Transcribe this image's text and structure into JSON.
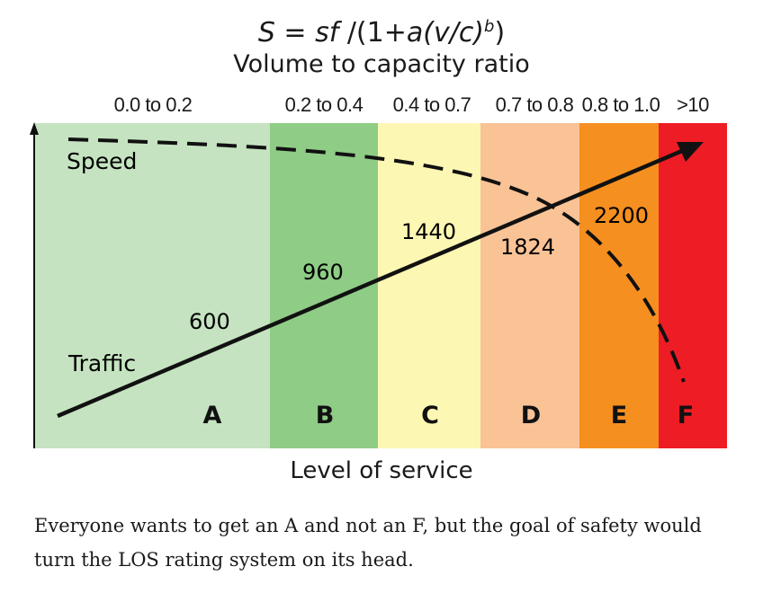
{
  "formula": {
    "lhs": "S",
    "eq": " = ",
    "sf": "sf",
    "div": " /(1+",
    "a": "a",
    "vc": "(v/c)",
    "b": "b",
    "close": ")"
  },
  "subtitle": "Volume to capacity ratio",
  "bands": [
    {
      "grade": "A",
      "range": "0.0 to 0.2",
      "color": "#c5e3c0"
    },
    {
      "grade": "B",
      "range": "0.2 to 0.4",
      "color": "#8fcc86"
    },
    {
      "grade": "C",
      "range": "0.4 to 0.7",
      "color": "#fdf7b4"
    },
    {
      "grade": "D",
      "range": "0.7 to 0.8",
      "color": "#f9c396"
    },
    {
      "grade": "E",
      "range": "0.8 to 1.0",
      "color": "#f58f20"
    },
    {
      "grade": "F",
      "range": ">10",
      "color": "#ee1c24"
    }
  ],
  "series": {
    "speed_label": "Speed",
    "traffic_label": "Traffic"
  },
  "traffic_values": [
    "600",
    "960",
    "1440",
    "1824",
    "2200"
  ],
  "xlabel": "Level of service",
  "caption": "Everyone wants to get an A and not an F, but the goal of safety would turn the LOS rating system on its head."
}
